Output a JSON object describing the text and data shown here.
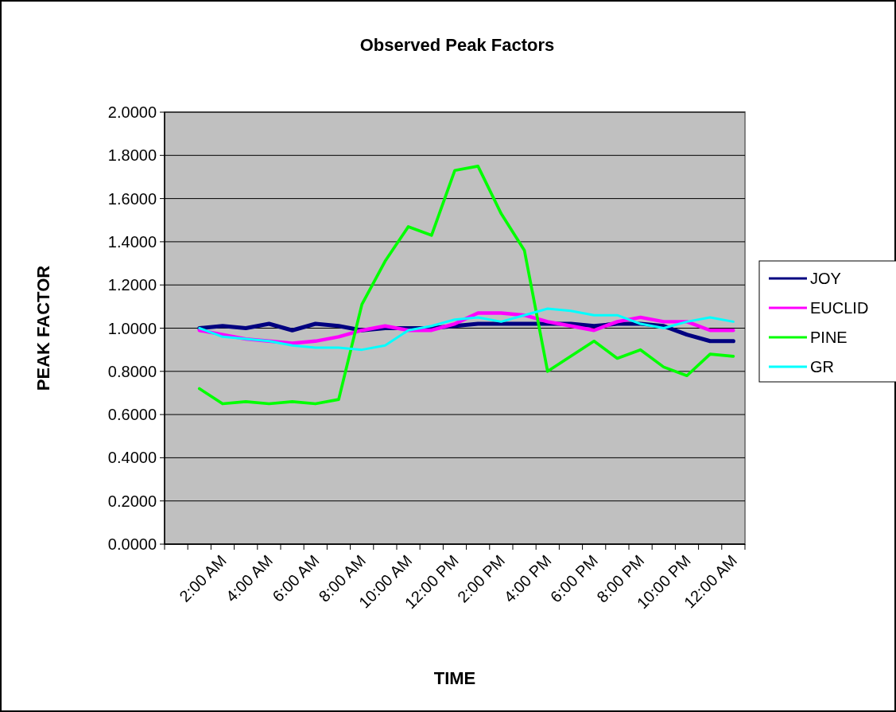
{
  "chart_data": {
    "type": "line",
    "title": "Observed Peak Factors",
    "xlabel": "TIME",
    "ylabel": "PEAK FACTOR",
    "categories": [
      null,
      null,
      "2:00 AM",
      null,
      "4:00 AM",
      null,
      "6:00 AM",
      null,
      "8:00 AM",
      null,
      "10:00 AM",
      null,
      "12:00 PM",
      null,
      "2:00 PM",
      null,
      "4:00 PM",
      null,
      "6:00 PM",
      null,
      "8:00 PM",
      null,
      "10:00 PM",
      null,
      "12:00 AM"
    ],
    "series": [
      {
        "name": "JOY",
        "color": "#000080",
        "values": [
          null,
          1.0,
          1.01,
          1.0,
          1.02,
          0.99,
          1.02,
          1.01,
          0.99,
          1.0,
          1.0,
          1.0,
          1.01,
          1.02,
          1.02,
          1.02,
          1.02,
          1.02,
          1.01,
          1.02,
          1.02,
          1.01,
          0.97,
          0.94,
          0.94
        ]
      },
      {
        "name": "EUCLID",
        "color": "#ff00ff",
        "values": [
          null,
          0.99,
          0.97,
          0.95,
          0.94,
          0.93,
          0.94,
          0.96,
          0.99,
          1.01,
          0.99,
          0.99,
          1.02,
          1.07,
          1.07,
          1.06,
          1.03,
          1.01,
          0.99,
          1.03,
          1.05,
          1.03,
          1.03,
          0.99,
          0.99
        ]
      },
      {
        "name": "PINE",
        "color": "#00ff00",
        "values": [
          null,
          0.72,
          0.65,
          0.66,
          0.65,
          0.66,
          0.65,
          0.67,
          1.11,
          1.31,
          1.47,
          1.43,
          1.73,
          1.75,
          1.53,
          1.36,
          0.8,
          0.87,
          0.94,
          0.86,
          0.9,
          0.82,
          0.78,
          0.88,
          0.87
        ]
      },
      {
        "name": "GR",
        "color": "#00ffff",
        "values": [
          null,
          1.0,
          0.96,
          0.95,
          0.94,
          0.92,
          0.91,
          0.91,
          0.9,
          0.92,
          0.99,
          1.01,
          1.04,
          1.05,
          1.03,
          1.06,
          1.09,
          1.08,
          1.06,
          1.06,
          1.02,
          1.0,
          1.03,
          1.05,
          1.03
        ]
      }
    ],
    "ylim": [
      0,
      2
    ],
    "yticks": [
      {
        "value": 0,
        "label": "0.0000"
      },
      {
        "value": 0.2,
        "label": "0.2000"
      },
      {
        "value": 0.4,
        "label": "0.4000"
      },
      {
        "value": 0.6,
        "label": "0.6000"
      },
      {
        "value": 0.8,
        "label": "0.8000"
      },
      {
        "value": 1,
        "label": "1.0000"
      },
      {
        "value": 1.2,
        "label": "1.2000"
      },
      {
        "value": 1.4,
        "label": "1.4000"
      },
      {
        "value": 1.6,
        "label": "1.6000"
      },
      {
        "value": 1.8,
        "label": "1.8000"
      },
      {
        "value": 2,
        "label": "2.0000"
      }
    ],
    "grid": "y",
    "legend": "right",
    "marker": "none",
    "line_style": "solid"
  }
}
